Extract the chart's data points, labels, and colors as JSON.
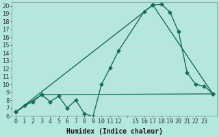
{
  "title": "",
  "xlabel": "Humidex (Indice chaleur)",
  "ylabel": "",
  "background_color": "#b2e8e0",
  "grid_color": "#c8dede",
  "line_color": "#1a6b5a",
  "ylim": [
    6,
    20.5
  ],
  "xlim": [
    -0.5,
    23.5
  ],
  "yticks": [
    6,
    7,
    8,
    9,
    10,
    11,
    12,
    13,
    14,
    15,
    16,
    17,
    18,
    19,
    20
  ],
  "xtick_labels": [
    "0",
    "1",
    "2",
    "3",
    "4",
    "5",
    "6",
    "7",
    "8",
    "9",
    "10",
    "11",
    "12",
    "",
    "15",
    "16",
    "17",
    "18",
    "19",
    "20",
    "21",
    "22",
    "23"
  ],
  "series1_x": [
    0,
    1,
    2,
    3,
    4,
    5,
    6,
    7,
    8,
    9,
    10,
    11,
    12,
    15,
    16,
    17,
    18,
    19,
    20,
    21,
    22,
    23
  ],
  "series1_y": [
    6.5,
    7.3,
    7.8,
    8.7,
    7.8,
    8.5,
    7.0,
    8.0,
    6.3,
    5.9,
    10.0,
    12.1,
    14.3,
    19.3,
    20.1,
    20.2,
    19.2,
    16.7,
    11.5,
    10.0,
    9.8,
    8.8
  ],
  "series2_x": [
    0,
    3,
    23
  ],
  "series2_y": [
    6.5,
    8.7,
    8.8
  ],
  "series3_x": [
    0,
    16,
    23
  ],
  "series3_y": [
    6.5,
    20.1,
    8.8
  ],
  "marker_size": 2.5,
  "line_width": 1.0,
  "font_size": 7,
  "xlabel_fontsize": 7
}
